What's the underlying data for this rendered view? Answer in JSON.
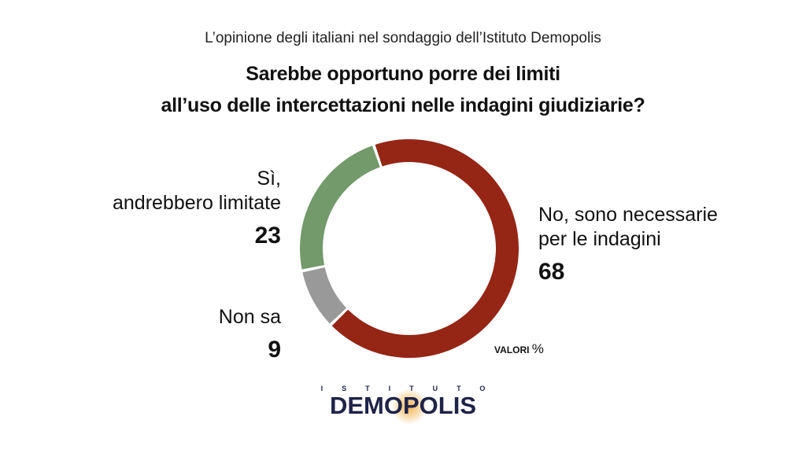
{
  "subtitle": "L’opinione degli italiani nel sondaggio dell’Istituto Demopolis",
  "title_line1": "Sarebbe opportuno porre dei limiti",
  "title_line2": "all’uso delle intercettazioni nelle indagini giudiziarie?",
  "chart_data": {
    "type": "pie",
    "donut": true,
    "unit_label": "VALORI",
    "unit_symbol": "%",
    "slices": [
      {
        "label_line1": "No, sono necessarie",
        "label_line2": "per le indagini",
        "value": 68,
        "color": "#952515"
      },
      {
        "label_line1": "Non sa",
        "label_line2": "",
        "value": 9,
        "color": "#999999"
      },
      {
        "label_line1": "Sì,",
        "label_line2": "andrebbero limitate",
        "value": 23,
        "color": "#729a6a"
      }
    ]
  },
  "logo": {
    "small": "ISTITUTO",
    "big": "DEMOPOLIS"
  }
}
